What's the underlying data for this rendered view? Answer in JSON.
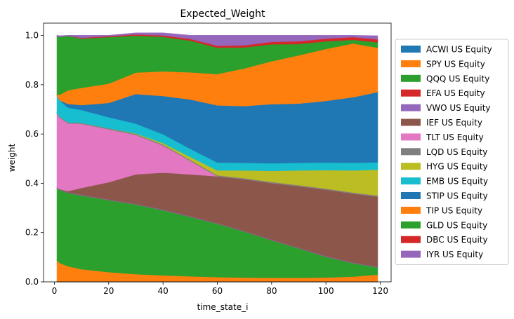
{
  "chart_data": {
    "type": "area",
    "stacked": true,
    "title": "Expected_Weight",
    "xlabel": "time_state_i",
    "ylabel": "weight",
    "xlim": [
      -4,
      124
    ],
    "ylim": [
      0,
      1.05
    ],
    "xticks": [
      0,
      20,
      40,
      60,
      80,
      100,
      120
    ],
    "xtick_labels": [
      "0",
      "20",
      "40",
      "60",
      "80",
      "100",
      "120"
    ],
    "yticks": [
      0.0,
      0.2,
      0.4,
      0.6,
      0.8,
      1.0
    ],
    "ytick_labels": [
      "0.0",
      "0.2",
      "0.4",
      "0.6",
      "0.8",
      "1.0"
    ],
    "legend_position": "right-outside",
    "x": [
      1,
      2,
      5,
      10,
      20,
      30,
      40,
      50,
      60,
      70,
      80,
      90,
      100,
      110,
      119
    ],
    "series": [
      {
        "name": "ACWI US Equity",
        "color": "#1f77b4",
        "values": [
          0.002,
          0.002,
          0.002,
          0.002,
          0.002,
          0.002,
          0.002,
          0.002,
          0.002,
          0.002,
          0.002,
          0.002,
          0.002,
          0.002,
          0.002
        ]
      },
      {
        "name": "SPY US Equity",
        "color": "#ff7f0e",
        "values": [
          0.085,
          0.075,
          0.062,
          0.05,
          0.038,
          0.03,
          0.025,
          0.021,
          0.018,
          0.016,
          0.015,
          0.015,
          0.016,
          0.02,
          0.028
        ]
      },
      {
        "name": "QQQ US Equity",
        "color": "#2ca02c",
        "values": [
          0.293,
          0.298,
          0.298,
          0.3,
          0.293,
          0.283,
          0.265,
          0.242,
          0.217,
          0.187,
          0.153,
          0.12,
          0.085,
          0.055,
          0.03
        ]
      },
      {
        "name": "EFA US Equity",
        "color": "#d62728",
        "values": [
          0.0,
          0.0,
          0.0,
          0.0,
          0.0,
          0.0,
          0.0,
          0.0,
          0.0,
          0.0,
          0.0,
          0.0,
          0.0,
          0.0,
          0.0
        ]
      },
      {
        "name": "VWO US Equity",
        "color": "#9467bd",
        "values": [
          0.002,
          0.002,
          0.002,
          0.002,
          0.002,
          0.002,
          0.002,
          0.002,
          0.002,
          0.002,
          0.002,
          0.002,
          0.002,
          0.002,
          0.002
        ]
      },
      {
        "name": "IEF US Equity",
        "color": "#8c564b",
        "values": [
          0.0,
          0.0,
          0.005,
          0.028,
          0.07,
          0.12,
          0.15,
          0.17,
          0.19,
          0.21,
          0.23,
          0.25,
          0.27,
          0.28,
          0.285
        ]
      },
      {
        "name": "TLT US Equity",
        "color": "#e377c2",
        "values": [
          0.3,
          0.29,
          0.275,
          0.26,
          0.215,
          0.16,
          0.11,
          0.055,
          0.0,
          0.0,
          0.0,
          0.0,
          0.0,
          0.0,
          0.0
        ]
      },
      {
        "name": "LQD US Equity",
        "color": "#7f7f7f",
        "values": [
          0.004,
          0.004,
          0.004,
          0.004,
          0.004,
          0.004,
          0.004,
          0.004,
          0.004,
          0.004,
          0.004,
          0.004,
          0.004,
          0.004,
          0.004
        ]
      },
      {
        "name": "HYG US Equity",
        "color": "#bcbd22",
        "values": [
          0.0,
          0.0,
          0.0,
          0.0,
          0.0,
          0.002,
          0.006,
          0.012,
          0.02,
          0.032,
          0.045,
          0.06,
          0.075,
          0.09,
          0.105
        ]
      },
      {
        "name": "EMB US Equity",
        "color": "#17becf",
        "values": [
          0.07,
          0.066,
          0.06,
          0.052,
          0.045,
          0.04,
          0.036,
          0.033,
          0.032,
          0.031,
          0.031,
          0.031,
          0.031,
          0.031,
          0.03
        ]
      },
      {
        "name": "STIP US Equity",
        "color": "#1f77b4",
        "values": [
          0.0,
          0.0,
          0.015,
          0.02,
          0.058,
          0.12,
          0.155,
          0.2,
          0.232,
          0.23,
          0.24,
          0.24,
          0.25,
          0.266,
          0.285
        ]
      },
      {
        "name": "TIP US Equity",
        "color": "#ff7f0e",
        "values": [
          0.005,
          0.023,
          0.055,
          0.07,
          0.078,
          0.087,
          0.1,
          0.11,
          0.127,
          0.153,
          0.174,
          0.196,
          0.211,
          0.218,
          0.18
        ]
      },
      {
        "name": "GLD US Equity",
        "color": "#2ca02c",
        "values": [
          0.236,
          0.235,
          0.221,
          0.2,
          0.189,
          0.15,
          0.14,
          0.129,
          0.107,
          0.085,
          0.069,
          0.046,
          0.031,
          0.015,
          0.022
        ]
      },
      {
        "name": "DBC US Equity",
        "color": "#d62728",
        "values": [
          0.0,
          0.0,
          0.0,
          0.003,
          0.004,
          0.005,
          0.006,
          0.007,
          0.008,
          0.009,
          0.01,
          0.011,
          0.011,
          0.011,
          0.012
        ]
      },
      {
        "name": "IYR US Equity",
        "color": "#9467bd",
        "values": [
          0.003,
          0.003,
          0.001,
          0.009,
          0.002,
          0.005,
          0.009,
          0.013,
          0.041,
          0.039,
          0.025,
          0.023,
          0.012,
          0.006,
          0.013
        ]
      }
    ]
  }
}
